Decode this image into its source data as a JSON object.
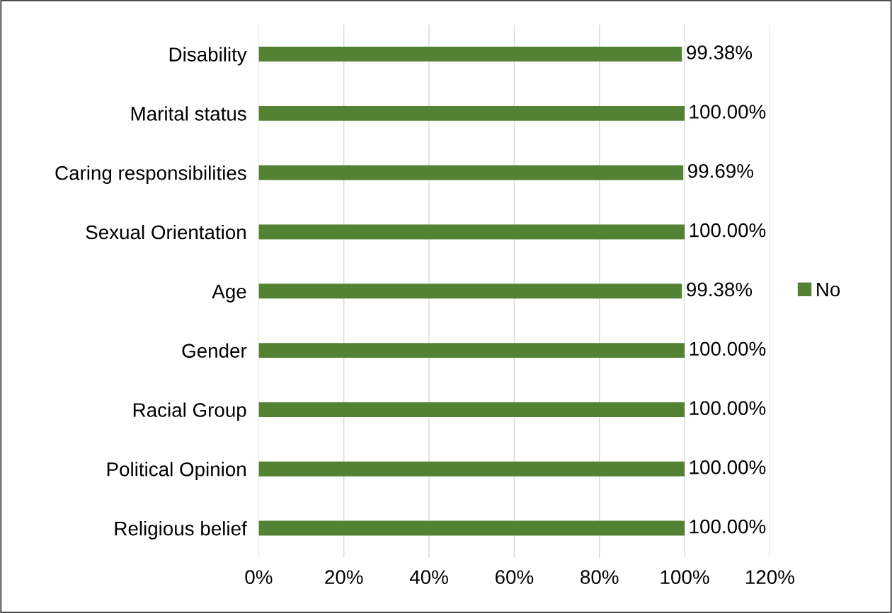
{
  "chart_data": {
    "type": "bar",
    "orientation": "horizontal",
    "categories": [
      "Disability",
      "Marital status",
      "Caring responsibilities",
      "Sexual Orientation",
      "Age",
      "Gender",
      "Racial Group",
      "Political Opinion",
      "Religious belief"
    ],
    "series": [
      {
        "name": "No",
        "color": "#548235",
        "values": [
          99.38,
          100,
          99.69,
          100,
          99.38,
          100,
          100,
          100,
          100
        ],
        "value_labels": [
          "99.38%",
          "100.00%",
          "99.69%",
          "100.00%",
          "99.38%",
          "100.00%",
          "100.00%",
          "100.00%",
          "100.00%"
        ]
      }
    ],
    "xlim": [
      0,
      120
    ],
    "xticks": [
      {
        "value": 0,
        "label": "0%"
      },
      {
        "value": 20,
        "label": "20%"
      },
      {
        "value": 40,
        "label": "40%"
      },
      {
        "value": 60,
        "label": "60%"
      },
      {
        "value": 80,
        "label": "80%"
      },
      {
        "value": 100,
        "label": "100%"
      },
      {
        "value": 120,
        "label": "120%"
      }
    ],
    "grid": "x",
    "legend": "right"
  }
}
